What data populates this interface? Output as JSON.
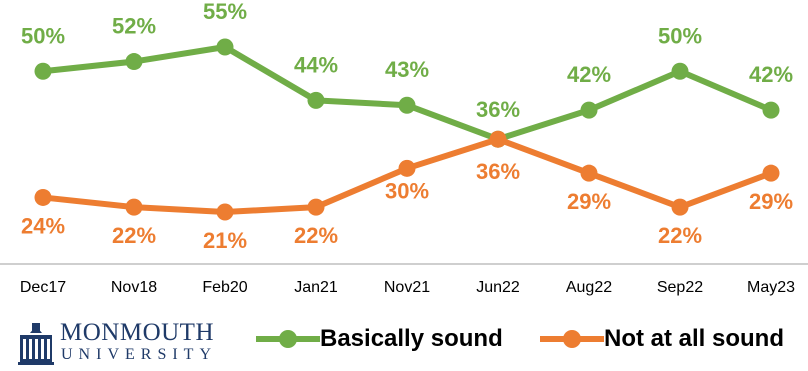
{
  "chart_data": {
    "type": "line",
    "categories": [
      "Dec17",
      "Nov18",
      "Feb20",
      "Jan21",
      "Nov21",
      "Jun22",
      "Aug22",
      "Sep22",
      "May23"
    ],
    "series": [
      {
        "name": "Basically sound",
        "color": "#70ad47",
        "values": [
          50,
          52,
          55,
          44,
          43,
          36,
          42,
          50,
          42
        ],
        "labels": [
          "50%",
          "52%",
          "55%",
          "44%",
          "43%",
          "36%",
          "42%",
          "50%",
          "42%"
        ]
      },
      {
        "name": "Not at all sound",
        "color": "#ed7d31",
        "values": [
          24,
          22,
          21,
          22,
          30,
          36,
          29,
          22,
          29
        ],
        "labels": [
          "24%",
          "22%",
          "21%",
          "22%",
          "30%",
          "36%",
          "29%",
          "22%",
          "29%"
        ]
      }
    ],
    "ylim": [
      15,
      60
    ],
    "grid": false,
    "legend": "bottom"
  },
  "logo": {
    "line1": "MONMOUTH",
    "line2": "UNIVERSITY",
    "color": "#1f3a68"
  }
}
